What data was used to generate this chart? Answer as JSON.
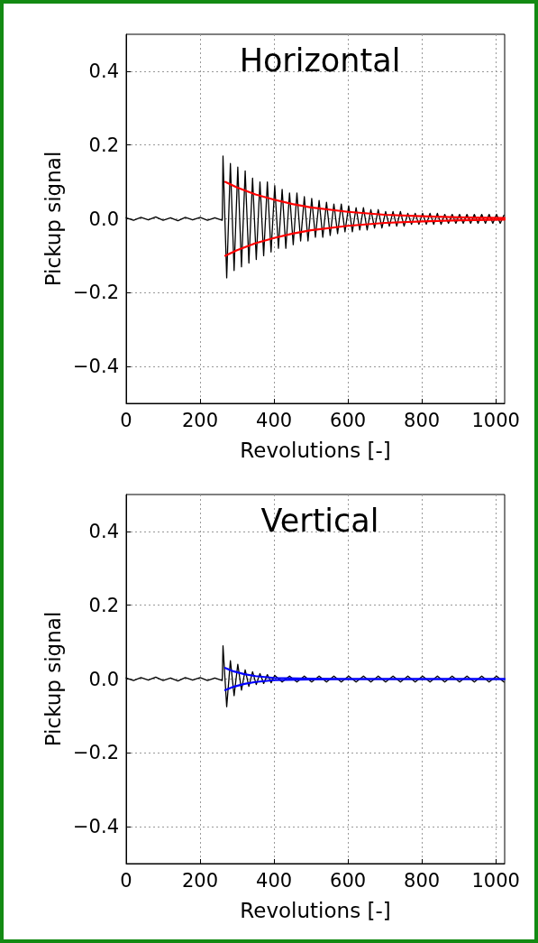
{
  "chart_data": [
    {
      "type": "line",
      "title": "Horizontal",
      "xlabel": "Revolutions [-]",
      "ylabel": "Pickup signal",
      "xlim": [
        0,
        1024
      ],
      "xticks": [
        0,
        200,
        400,
        600,
        800,
        1000
      ],
      "ylim": [
        -0.5,
        0.5
      ],
      "yticks": [
        {
          "value": -0.4,
          "label": "−0.4"
        },
        {
          "value": -0.2,
          "label": "−0.2"
        },
        {
          "value": 0,
          "label": "0.0"
        },
        {
          "value": 0.2,
          "label": "0.2"
        },
        {
          "value": 0.4,
          "label": "0.4"
        }
      ],
      "grid": true,
      "series": [
        {
          "color": "#000000",
          "x": [
            0,
            20,
            40,
            60,
            80,
            100,
            120,
            140,
            160,
            180,
            200,
            220,
            240,
            260,
            262,
            272,
            282,
            292,
            302,
            312,
            322,
            332,
            342,
            352,
            362,
            372,
            382,
            392,
            402,
            412,
            422,
            432,
            442,
            452,
            462,
            472,
            482,
            492,
            502,
            512,
            522,
            532,
            542,
            552,
            562,
            572,
            582,
            592,
            602,
            612,
            622,
            632,
            642,
            652,
            662,
            672,
            682,
            692,
            702,
            712,
            722,
            732,
            742,
            752,
            762,
            772,
            782,
            792,
            802,
            812,
            822,
            832,
            842,
            852,
            862,
            872,
            882,
            892,
            902,
            912,
            922,
            932,
            942,
            952,
            962,
            972,
            982,
            992,
            1002,
            1012,
            1022
          ],
          "values": [
            0.003,
            -0.004,
            0.004,
            -0.003,
            0.005,
            -0.004,
            0.003,
            -0.005,
            0.004,
            -0.003,
            0.004,
            -0.004,
            0.003,
            -0.004,
            0.17,
            -0.16,
            0.15,
            -0.14,
            0.14,
            -0.13,
            0.13,
            -0.12,
            0.11,
            -0.11,
            0.1,
            -0.1,
            0.1,
            -0.09,
            0.09,
            -0.08,
            0.08,
            -0.08,
            0.07,
            -0.07,
            0.07,
            -0.06,
            0.06,
            -0.06,
            0.055,
            -0.05,
            0.05,
            -0.05,
            0.045,
            -0.045,
            0.04,
            -0.04,
            0.04,
            -0.035,
            0.035,
            -0.035,
            0.03,
            -0.03,
            0.03,
            -0.03,
            0.025,
            -0.025,
            0.025,
            -0.025,
            0.02,
            -0.02,
            0.02,
            -0.02,
            0.02,
            -0.02,
            0.015,
            -0.015,
            0.015,
            -0.015,
            0.015,
            -0.015,
            0.015,
            -0.015,
            0.015,
            -0.015,
            0.012,
            -0.012,
            0.012,
            -0.012,
            0.012,
            -0.012,
            0.012,
            -0.012,
            0.012,
            -0.012,
            0.012,
            -0.012,
            0.012,
            -0.012,
            0.012,
            -0.012,
            0.01
          ]
        },
        {
          "color": "#ff0000",
          "x": [
            268,
            300,
            350,
            400,
            450,
            500,
            600,
            700,
            800,
            900,
            1024
          ],
          "values": [
            0.1,
            0.085,
            0.066,
            0.052,
            0.04,
            0.031,
            0.019,
            0.011,
            0.007,
            0.004,
            0.002
          ]
        },
        {
          "color": "#ff0000",
          "x": [
            268,
            300,
            350,
            400,
            450,
            500,
            600,
            700,
            800,
            900,
            1024
          ],
          "values": [
            -0.1,
            -0.085,
            -0.066,
            -0.052,
            -0.04,
            -0.031,
            -0.019,
            -0.011,
            -0.007,
            -0.004,
            -0.002
          ]
        }
      ]
    },
    {
      "type": "line",
      "title": "Vertical",
      "xlabel": "Revolutions [-]",
      "ylabel": "Pickup signal",
      "xlim": [
        0,
        1024
      ],
      "xticks": [
        0,
        200,
        400,
        600,
        800,
        1000
      ],
      "ylim": [
        -0.5,
        0.5
      ],
      "yticks": [
        {
          "value": -0.4,
          "label": "−0.4"
        },
        {
          "value": -0.2,
          "label": "−0.2"
        },
        {
          "value": 0,
          "label": "0.0"
        },
        {
          "value": 0.2,
          "label": "0.2"
        },
        {
          "value": 0.4,
          "label": "0.4"
        }
      ],
      "grid": true,
      "series": [
        {
          "color": "#000000",
          "x": [
            0,
            20,
            40,
            60,
            80,
            100,
            120,
            140,
            160,
            180,
            200,
            220,
            240,
            260,
            262,
            272,
            282,
            292,
            302,
            312,
            322,
            332,
            342,
            352,
            362,
            372,
            382,
            392,
            402,
            422,
            442,
            462,
            482,
            502,
            522,
            542,
            562,
            582,
            602,
            622,
            642,
            662,
            682,
            702,
            722,
            742,
            762,
            782,
            802,
            822,
            842,
            862,
            882,
            902,
            922,
            942,
            962,
            982,
            1002,
            1022
          ],
          "values": [
            0.003,
            -0.004,
            0.004,
            -0.003,
            0.005,
            -0.004,
            0.003,
            -0.005,
            0.004,
            -0.003,
            0.004,
            -0.004,
            0.003,
            -0.004,
            0.09,
            -0.075,
            0.05,
            -0.045,
            0.04,
            -0.03,
            0.025,
            -0.02,
            0.02,
            -0.015,
            0.015,
            -0.012,
            0.012,
            -0.01,
            0.01,
            -0.008,
            0.008,
            -0.008,
            0.008,
            -0.008,
            0.008,
            -0.008,
            0.008,
            -0.008,
            0.008,
            -0.008,
            0.008,
            -0.008,
            0.008,
            -0.008,
            0.008,
            -0.008,
            0.008,
            -0.008,
            0.008,
            -0.008,
            0.008,
            -0.008,
            0.008,
            -0.008,
            0.008,
            -0.008,
            0.008,
            -0.008,
            0.008,
            -0.008
          ]
        },
        {
          "color": "#0000ff",
          "x": [
            268,
            290,
            320,
            350,
            400,
            500,
            600,
            800,
            1024
          ],
          "values": [
            0.03,
            0.021,
            0.013,
            0.008,
            0.003,
            0.001,
            0,
            0,
            0
          ]
        },
        {
          "color": "#0000ff",
          "x": [
            268,
            290,
            320,
            350,
            400,
            500,
            600,
            800,
            1024
          ],
          "values": [
            -0.03,
            -0.021,
            -0.013,
            -0.008,
            -0.003,
            -0.001,
            0,
            0,
            0
          ]
        }
      ]
    }
  ]
}
